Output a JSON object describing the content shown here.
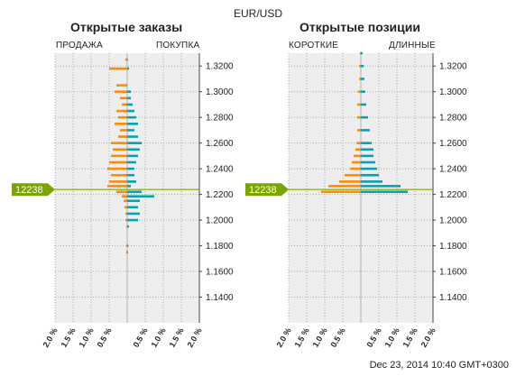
{
  "header": {
    "title": "EUR/USD"
  },
  "footer": {
    "timestamp": "Dec 23, 2014 10:40 GMT+0300"
  },
  "colors": {
    "sell": "#ff8c00",
    "buy": "#00a3b8",
    "current": "#7aa500",
    "plot_bg": "#eeeeee",
    "grid": "#aaaaaa"
  },
  "chart_data": [
    {
      "type": "bar",
      "title": "Открытые заказы",
      "left_label": "ПРОДАЖА",
      "right_label": "ПОКУПКА",
      "current_price_label": "12238",
      "current_price": 1.2238,
      "orientation": "horizontal",
      "ylim": [
        1.12,
        1.33
      ],
      "y_ticks": [
        1.32,
        1.3,
        1.28,
        1.26,
        1.24,
        1.22,
        1.2,
        1.18,
        1.16,
        1.14
      ],
      "y_tick_labels": [
        "1.3200",
        "1.3000",
        "1.2800",
        "1.2600",
        "1.2400",
        "1.2200",
        "1.2000",
        "1.1800",
        "1.1600",
        "1.1400"
      ],
      "xlim": [
        -2.0,
        2.0
      ],
      "x_ticks": [
        -2.0,
        -1.5,
        -1.0,
        -0.5,
        0.5,
        1.0,
        1.5,
        2.0
      ],
      "x_tick_labels": [
        "2.0 %",
        "1.5 %",
        "1.0 %",
        "0.5 %",
        "0.5 %",
        "1.0 %",
        "1.5 %",
        "2.0 %"
      ],
      "series": [
        {
          "name": "ПРОДАЖА",
          "prices": [
            1.325,
            1.318,
            1.305,
            1.3,
            1.295,
            1.29,
            1.285,
            1.28,
            1.275,
            1.27,
            1.265,
            1.26,
            1.255,
            1.25,
            1.245,
            1.24,
            1.235,
            1.23,
            1.2265,
            1.222,
            1.2185,
            1.215,
            1.21,
            1.205,
            1.2,
            1.195,
            1.18,
            1.175
          ],
          "values": [
            0.05,
            0.5,
            0.3,
            0.35,
            0.2,
            0.15,
            0.3,
            0.25,
            0.35,
            0.2,
            0.25,
            0.45,
            0.4,
            0.45,
            0.5,
            0.55,
            0.45,
            0.5,
            0.55,
            0.3,
            0.15,
            0.1,
            0.08,
            0.05,
            0.05,
            0.02,
            0.02,
            0.03
          ]
        },
        {
          "name": "ПОКУПКА",
          "prices": [
            1.325,
            1.318,
            1.3,
            1.295,
            1.29,
            1.285,
            1.28,
            1.275,
            1.27,
            1.265,
            1.26,
            1.255,
            1.25,
            1.245,
            1.24,
            1.235,
            1.23,
            1.2265,
            1.222,
            1.2185,
            1.215,
            1.21,
            1.205,
            1.2,
            1.195,
            1.18,
            1.175
          ],
          "values": [
            0.02,
            0.05,
            0.1,
            0.1,
            0.15,
            0.2,
            0.25,
            0.3,
            0.2,
            0.3,
            0.4,
            0.35,
            0.3,
            0.25,
            0.2,
            0.2,
            0.25,
            0.1,
            0.4,
            0.75,
            0.35,
            0.3,
            0.35,
            0.3,
            0.05,
            0.03,
            0.02
          ]
        }
      ]
    },
    {
      "type": "bar",
      "title": "Открытые позиции",
      "left_label": "КОРОТКИЕ",
      "right_label": "ДЛИННЫЕ",
      "current_price_label": "12238",
      "current_price": 1.2238,
      "orientation": "horizontal",
      "ylim": [
        1.12,
        1.33
      ],
      "y_ticks": [
        1.32,
        1.3,
        1.28,
        1.26,
        1.24,
        1.22,
        1.2,
        1.18,
        1.16,
        1.14
      ],
      "y_tick_labels": [
        "1.3200",
        "1.3000",
        "1.2800",
        "1.2600",
        "1.2400",
        "1.2200",
        "1.2000",
        "1.1800",
        "1.1600",
        "1.1400"
      ],
      "xlim": [
        -2.0,
        2.0
      ],
      "x_ticks": [
        -2.0,
        -1.5,
        -1.0,
        -0.5,
        0.5,
        1.0,
        1.5,
        2.0
      ],
      "x_tick_labels": [
        "2.0 %",
        "1.5 %",
        "1.0 %",
        "0.5 %",
        "0.5 %",
        "1.0 %",
        "1.5 %",
        "2.0 %"
      ],
      "series": [
        {
          "name": "КОРОТКИЕ",
          "prices": [
            1.33,
            1.32,
            1.31,
            1.3,
            1.29,
            1.28,
            1.27,
            1.26,
            1.255,
            1.25,
            1.245,
            1.24,
            1.235,
            1.23,
            1.2265,
            1.222
          ],
          "values": [
            0.03,
            0.05,
            0.05,
            0.08,
            0.1,
            0.1,
            0.1,
            0.12,
            0.15,
            0.2,
            0.25,
            0.3,
            0.45,
            0.6,
            0.9,
            1.1
          ]
        },
        {
          "name": "ДЛИННЫЕ",
          "prices": [
            1.33,
            1.32,
            1.31,
            1.3,
            1.29,
            1.28,
            1.27,
            1.26,
            1.255,
            1.25,
            1.245,
            1.24,
            1.235,
            1.23,
            1.2265,
            1.222
          ],
          "values": [
            0.05,
            0.08,
            0.1,
            0.12,
            0.15,
            0.2,
            0.25,
            0.3,
            0.35,
            0.35,
            0.4,
            0.45,
            0.5,
            0.6,
            1.1,
            1.3
          ]
        }
      ]
    }
  ]
}
